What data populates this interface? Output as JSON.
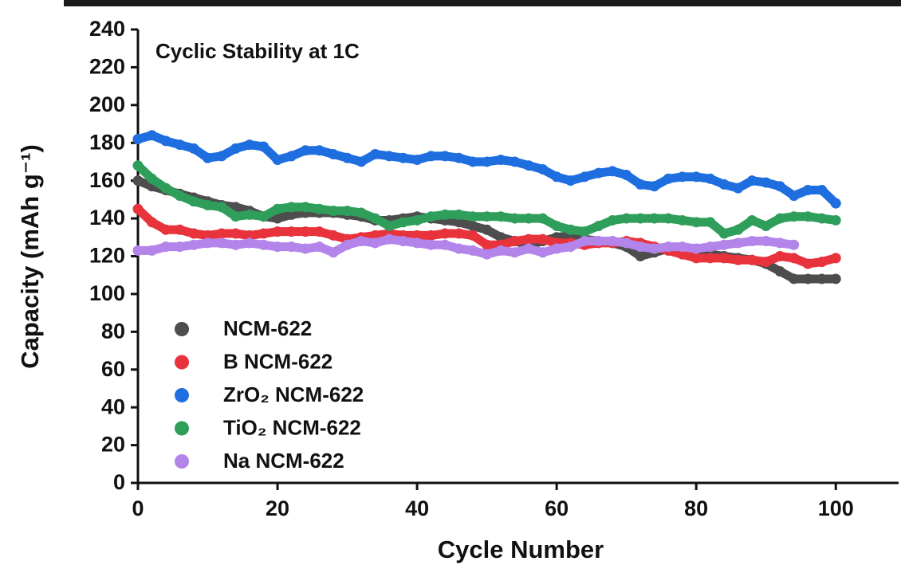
{
  "chart_data": {
    "type": "line",
    "title": "Cyclic Stability at 1C",
    "x_label": "Cycle Number",
    "y_label": "Capacity (mAh g⁻¹)",
    "x": [
      0,
      2,
      4,
      6,
      8,
      10,
      12,
      14,
      16,
      18,
      20,
      22,
      24,
      26,
      28,
      30,
      32,
      34,
      36,
      38,
      40,
      42,
      44,
      46,
      48,
      50,
      52,
      54,
      56,
      58,
      60,
      62,
      64,
      66,
      68,
      70,
      72,
      74,
      76,
      78,
      80,
      82,
      84,
      86,
      88,
      90,
      92,
      94,
      96,
      98,
      100
    ],
    "series": [
      {
        "name": "NCM-622",
        "color": "#4d4d4d",
        "values": [
          160,
          157,
          155,
          153,
          151,
          149,
          147,
          146,
          144,
          141,
          140,
          142,
          143,
          143,
          143,
          142,
          141,
          139,
          139,
          140,
          141,
          140,
          139,
          138,
          136,
          134,
          130,
          128,
          126,
          128,
          130,
          131,
          129,
          128,
          127,
          125,
          120,
          122,
          124,
          122,
          121,
          121,
          120,
          119,
          118,
          116,
          112,
          108,
          108,
          108,
          108
        ]
      },
      {
        "name": "B NCM-622",
        "color": "#e8323c",
        "values": [
          145,
          138,
          134,
          134,
          132,
          131,
          132,
          132,
          131,
          132,
          133,
          133,
          133,
          133,
          131,
          129,
          130,
          131,
          132,
          131,
          131,
          131,
          132,
          132,
          131,
          126,
          126,
          128,
          129,
          129,
          127,
          127,
          126,
          127,
          127,
          128,
          127,
          125,
          123,
          121,
          119,
          119,
          119,
          118,
          118,
          117,
          120,
          119,
          116,
          117,
          119
        ]
      },
      {
        "name": "ZrO₂ NCM-622",
        "color": "#1f6ee0",
        "values": [
          182,
          184,
          181,
          179,
          177,
          172,
          173,
          177,
          179,
          178,
          171,
          173,
          176,
          176,
          174,
          172,
          170,
          174,
          173,
          172,
          171,
          173,
          173,
          172,
          170,
          170,
          171,
          170,
          168,
          166,
          162,
          160,
          162,
          164,
          165,
          163,
          158,
          157,
          161,
          162,
          162,
          161,
          158,
          156,
          160,
          159,
          157,
          152,
          155,
          155,
          148
        ]
      },
      {
        "name": "TiO₂ NCM-622",
        "color": "#2e9e5a",
        "values": [
          168,
          161,
          156,
          152,
          149,
          147,
          146,
          141,
          142,
          141,
          145,
          146,
          146,
          145,
          144,
          144,
          143,
          140,
          136,
          138,
          139,
          141,
          142,
          142,
          141,
          141,
          141,
          140,
          140,
          140,
          136,
          134,
          133,
          136,
          139,
          140,
          140,
          140,
          140,
          139,
          138,
          138,
          132,
          134,
          139,
          136,
          140,
          141,
          141,
          140,
          139
        ]
      },
      {
        "name": "Na NCM-622",
        "color": "#b384ea",
        "values": [
          123,
          123,
          125,
          125,
          126,
          127,
          127,
          126,
          127,
          126,
          125,
          125,
          124,
          125,
          122,
          126,
          128,
          127,
          129,
          128,
          127,
          126,
          126,
          124,
          123,
          121,
          123,
          122,
          124,
          122,
          124,
          125,
          128,
          128,
          128,
          127,
          125,
          124,
          125,
          125,
          124,
          125,
          126,
          127,
          128,
          128,
          127,
          126,
          null,
          null,
          null
        ]
      }
    ],
    "xlim": [
      0,
      109
    ],
    "xticks": [
      0,
      20,
      40,
      60,
      80,
      100
    ],
    "ylim": [
      0,
      240
    ],
    "yticks": [
      0,
      20,
      40,
      60,
      80,
      100,
      120,
      140,
      160,
      180,
      200,
      220,
      240
    ],
    "legend": "lower left"
  }
}
